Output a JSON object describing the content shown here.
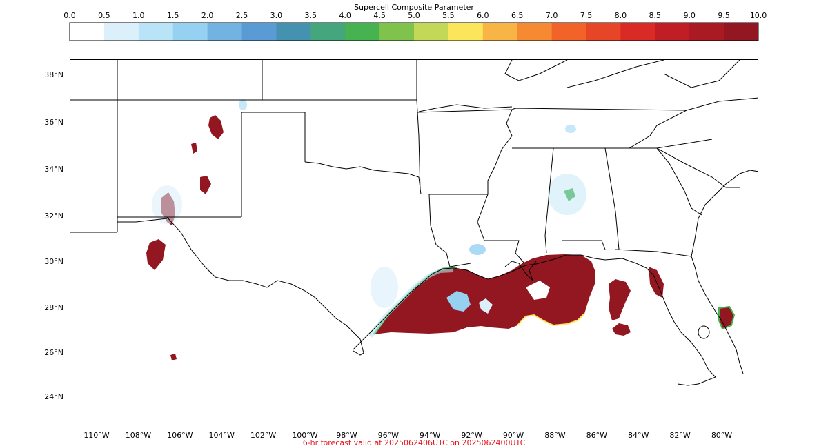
{
  "colorbar": {
    "title": "Supercell Composite Parameter",
    "ticks": [
      "0.0",
      "0.5",
      "1.0",
      "1.5",
      "2.0",
      "2.5",
      "3.0",
      "3.5",
      "4.0",
      "4.5",
      "5.0",
      "5.5",
      "6.0",
      "6.5",
      "7.0",
      "7.5",
      "8.0",
      "8.5",
      "9.0",
      "9.5",
      "10.0"
    ],
    "colors": [
      "#ffffff",
      "#dcf0fb",
      "#b9e3f7",
      "#97d1f2",
      "#73b3e2",
      "#5a9bd6",
      "#4592b0",
      "#45a57c",
      "#46b250",
      "#80c34c",
      "#c3d856",
      "#fbe55a",
      "#f9b446",
      "#f68a33",
      "#f16328",
      "#e64527",
      "#d92a26",
      "#c01d25",
      "#a91a22",
      "#931720"
    ]
  },
  "map": {
    "lat_labels": [
      "38°N",
      "36°N",
      "34°N",
      "32°N",
      "30°N",
      "28°N",
      "26°N",
      "24°N"
    ],
    "lon_labels": [
      "110°W",
      "108°W",
      "106°W",
      "104°W",
      "102°W",
      "100°W",
      "98°W",
      "96°W",
      "94°W",
      "92°W",
      "90°W",
      "88°W",
      "86°W",
      "84°W",
      "82°W",
      "80°W"
    ],
    "colors": {
      "max_fill": "#931720",
      "border": "#000000"
    }
  },
  "footer": {
    "text": "6-hr forecast valid at 2025062406UTC on 2025062400UTC",
    "color": "#e8141c"
  }
}
